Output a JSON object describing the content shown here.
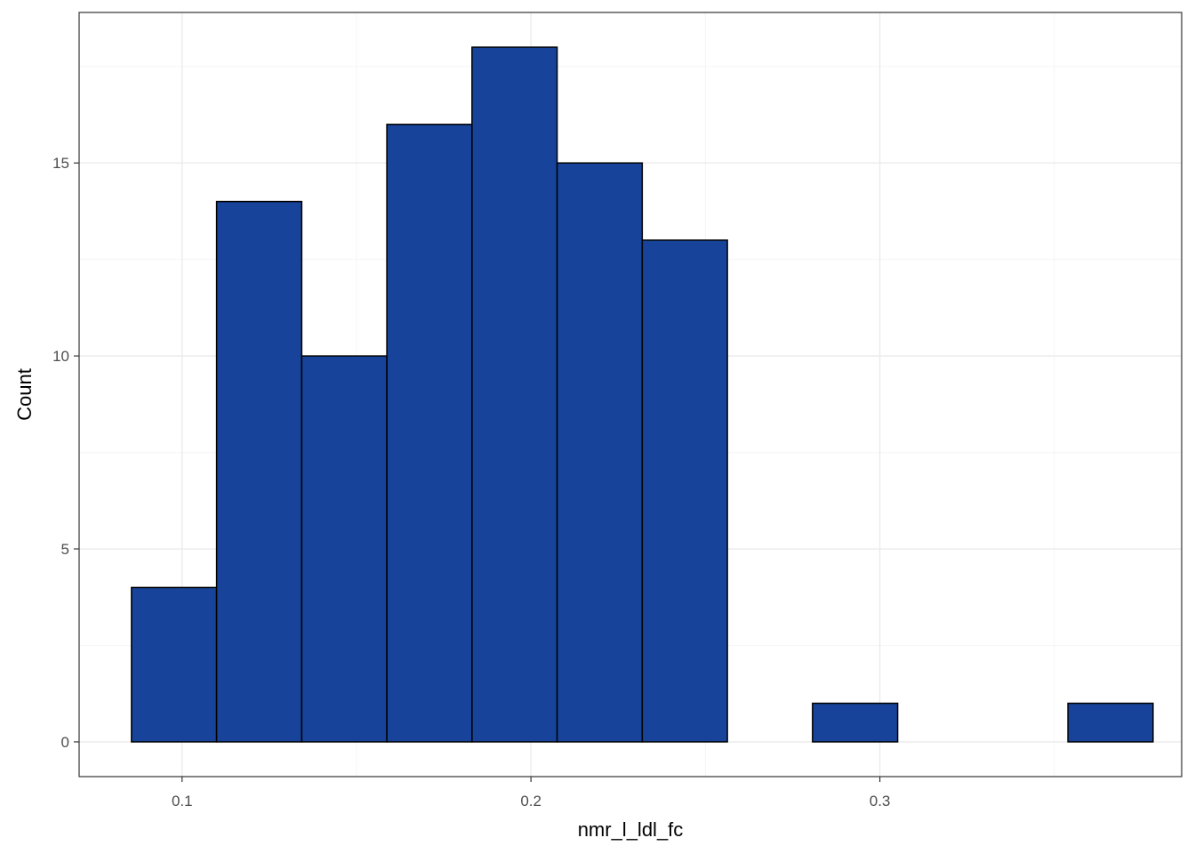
{
  "chart_data": {
    "type": "bar",
    "subtype": "histogram",
    "title": "",
    "xlabel": "nmr_l_ldl_fc",
    "ylabel": "Count",
    "xlim": [
      0.0705,
      0.3865
    ],
    "ylim": [
      -0.9,
      18.9
    ],
    "x_ticks": [
      0.1,
      0.2,
      0.3
    ],
    "x_tick_labels": [
      "0.1",
      "0.2",
      "0.3"
    ],
    "y_ticks": [
      0,
      5,
      10,
      15
    ],
    "y_tick_labels": [
      "0",
      "5",
      "10",
      "15"
    ],
    "x_minor_ticks": [
      0.15,
      0.25,
      0.35
    ],
    "y_minor_ticks": [
      2.5,
      7.5,
      12.5,
      17.5
    ],
    "grid": true,
    "legend": "none",
    "bin_edges": [
      0.0855,
      0.1099,
      0.1343,
      0.1587,
      0.1831,
      0.2075,
      0.2319,
      0.2563,
      0.2807,
      0.3051,
      0.3295,
      0.3539,
      0.3783
    ],
    "values": [
      4,
      14,
      10,
      16,
      18,
      15,
      13,
      0,
      1,
      0,
      0,
      1
    ],
    "colors": {
      "bar_fill": "#17449A",
      "bar_stroke": "#000000",
      "grid_major": "#EBEBEB",
      "grid_minor": "#F5F5F5",
      "panel_border": "#333333",
      "tick_label": "#4D4D4D",
      "axis_title": "#000000"
    }
  }
}
